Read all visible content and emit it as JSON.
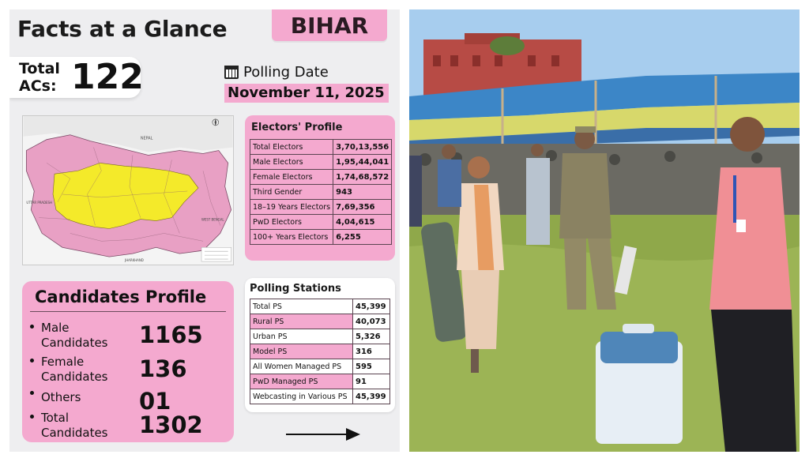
{
  "infographic": {
    "title": "Facts at a Glance",
    "state": "BIHAR",
    "total_acs_label": "Total ACs:",
    "total_acs_value": "122",
    "polling_date_label": "Polling Date",
    "polling_date_value": "November 11, 2025",
    "map": {
      "country_label": "NEPAL",
      "neighbour_left": "UTTAR PRADESH",
      "neighbour_right": "WEST BENGAL",
      "neighbour_bottom": "JHARKHAND"
    },
    "electors_profile": {
      "title": "Electors' Profile",
      "rows": [
        {
          "label": "Total Electors",
          "value": "3,70,13,556"
        },
        {
          "label": "Male Electors",
          "value": "1,95,44,041"
        },
        {
          "label": "Female Electors",
          "value": "1,74,68,572"
        },
        {
          "label": "Third Gender",
          "value": "943"
        },
        {
          "label": "18–19 Years Electors",
          "value": "7,69,356"
        },
        {
          "label": "PwD Electors",
          "value": "4,04,615"
        },
        {
          "label": "100+ Years Electors",
          "value": "6,255"
        }
      ]
    },
    "candidates_profile": {
      "title": "Candidates Profile",
      "rows": [
        {
          "label": "Male Candidates",
          "value": "1165"
        },
        {
          "label": "Female Candidates",
          "value": "136"
        },
        {
          "label": "Others",
          "value": "01"
        },
        {
          "label": "Total Candidates",
          "value": "1302"
        }
      ]
    },
    "polling_stations": {
      "title": "Polling Stations",
      "rows": [
        {
          "label": "Total PS",
          "value": "45,399"
        },
        {
          "label": "Rural PS",
          "value": "40,073"
        },
        {
          "label": "Urban PS",
          "value": "5,326"
        },
        {
          "label": "Model PS",
          "value": "316"
        },
        {
          "label": "All Women Managed PS",
          "value": "595"
        },
        {
          "label": "PwD Managed PS",
          "value": "91"
        },
        {
          "label": "Webcasting in Various PS",
          "value": "45,399"
        }
      ]
    }
  },
  "colors": {
    "accent_pink": "#f4a9cf",
    "map_pink": "#e8a0c4",
    "map_yellow": "#f4ea2a",
    "panel_bg": "#eeeef0"
  }
}
